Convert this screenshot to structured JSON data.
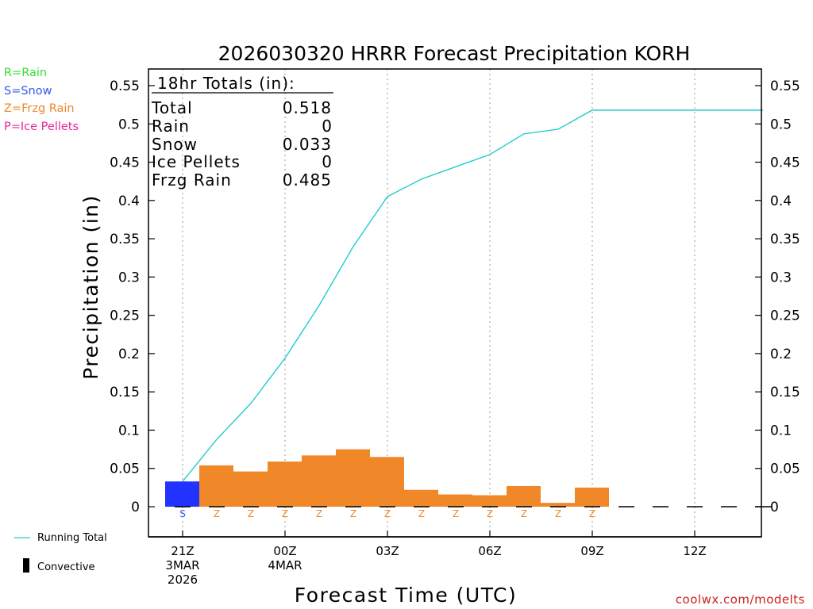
{
  "title": "2026030320 HRRR Forecast Precipitation KORH",
  "legend_codes": [
    {
      "text": "R=Rain",
      "color": "#33dd33"
    },
    {
      "text": "S=Snow",
      "color": "#3355ee"
    },
    {
      "text": "Z=Frzg Rain",
      "color": "#f0882a"
    },
    {
      "text": "P=Ice Pellets",
      "color": "#e8289a"
    }
  ],
  "totals": {
    "header": "18hr Totals (in):",
    "rows": [
      {
        "label": "Total",
        "value": "0.518"
      },
      {
        "label": "Rain",
        "value": "0"
      },
      {
        "label": "Snow",
        "value": "0.033"
      },
      {
        "label": "Ice Pellets",
        "value": "0"
      },
      {
        "label": "Frzg Rain",
        "value": "0.485"
      }
    ]
  },
  "legend_bottom": {
    "running_total": "Running Total",
    "convective": "Convective"
  },
  "credit": "coolwx.com/modelts",
  "colors": {
    "snow": "#2233ff",
    "frzg_rain": "#f0882a",
    "running_total": "#22cccc",
    "axis": "#000000",
    "grid": "#999999",
    "credit": "#cc2222",
    "z_label": "#f0882a",
    "s_label": "#3355ee"
  },
  "chart_data": {
    "type": "bar",
    "title": "2026030320 HRRR Forecast Precipitation KORH",
    "xlabel": "Forecast Time (UTC)",
    "ylabel": "Precipitation (in)",
    "ylim": [
      -0.045,
      0.57
    ],
    "xlim_hours": [
      -1,
      17
    ],
    "yticks": [
      0,
      0.05,
      0.1,
      0.15,
      0.2,
      0.25,
      0.3,
      0.35,
      0.4,
      0.45,
      0.5,
      0.55
    ],
    "ytick_labels": [
      "0",
      "0.05",
      "0.1",
      "0.15",
      "0.2",
      "0.25",
      "0.3",
      "0.35",
      "0.4",
      "0.45",
      "0.5",
      "0.55"
    ],
    "xticks": [
      {
        "hour": 0,
        "lines": [
          "21Z",
          "3MAR",
          "2026"
        ]
      },
      {
        "hour": 3,
        "lines": [
          "00Z",
          "4MAR"
        ]
      },
      {
        "hour": 6,
        "lines": [
          "03Z"
        ]
      },
      {
        "hour": 9,
        "lines": [
          "06Z"
        ]
      },
      {
        "hour": 12,
        "lines": [
          "09Z"
        ]
      },
      {
        "hour": 15,
        "lines": [
          "12Z"
        ]
      }
    ],
    "hours": [
      0,
      1,
      2,
      3,
      4,
      5,
      6,
      7,
      8,
      9,
      10,
      11,
      12,
      13,
      14,
      15,
      16,
      17
    ],
    "hourly_precip": [
      0.033,
      0.054,
      0.046,
      0.059,
      0.067,
      0.075,
      0.065,
      0.022,
      0.016,
      0.015,
      0.027,
      0.005,
      0.025,
      0,
      0,
      0,
      0,
      0
    ],
    "ptype": [
      "S",
      "Z",
      "Z",
      "Z",
      "Z",
      "Z",
      "Z",
      "Z",
      "Z",
      "Z",
      "Z",
      "Z",
      "Z",
      "",
      "",
      "",
      "",
      ""
    ],
    "running_total": {
      "name": "Running Total",
      "x": [
        0,
        1,
        2,
        3,
        4,
        5,
        6,
        7,
        8,
        9,
        10,
        11,
        12,
        13,
        14,
        15,
        16,
        17
      ],
      "values": [
        0.033,
        0.088,
        0.135,
        0.194,
        0.263,
        0.34,
        0.405,
        0.428,
        0.444,
        0.46,
        0.487,
        0.493,
        0.518,
        0.518,
        0.518,
        0.518,
        0.518,
        0.518
      ]
    }
  }
}
